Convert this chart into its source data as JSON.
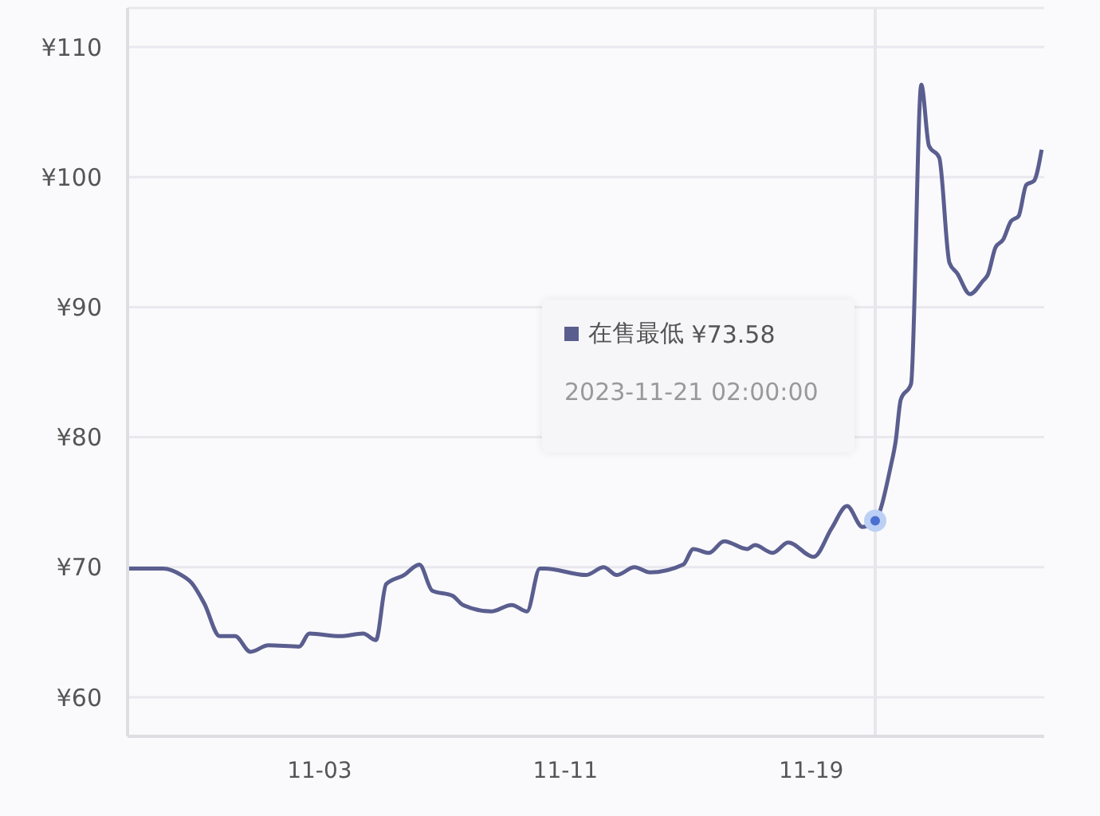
{
  "chart_data": {
    "type": "line",
    "x": [
      "2023-10-27T18:00",
      "2023-10-28T22:00",
      "2023-10-29T12:00",
      "2023-10-29T20:00",
      "2023-10-30T06:00",
      "2023-10-30T18:00",
      "2023-10-31T06:00",
      "2023-10-31T18:00",
      "2023-11-01T08:00",
      "2023-11-02T08:00",
      "2023-11-02T16:00",
      "2023-11-03T16:00",
      "2023-11-04T10:00",
      "2023-11-04T20:00",
      "2023-11-05T04:00",
      "2023-11-05T18:00",
      "2023-11-06T06:00",
      "2023-11-06T16:00",
      "2023-11-07T08:00",
      "2023-11-07T16:00",
      "2023-11-08T14:00",
      "2023-11-09T06:00",
      "2023-11-09T18:00",
      "2023-11-10T04:00",
      "2023-11-10T08:00",
      "2023-11-11T16:00",
      "2023-11-12T06:00",
      "2023-11-12T16:00",
      "2023-11-13T06:00",
      "2023-11-13T18:00",
      "2023-11-14T20:00",
      "2023-11-15T04:00",
      "2023-11-15T16:00",
      "2023-11-16T04:00",
      "2023-11-16T22:00",
      "2023-11-17T04:00",
      "2023-11-17T18:00",
      "2023-11-18T06:00",
      "2023-11-19T02:00",
      "2023-11-19T16:00",
      "2023-11-20T04:00",
      "2023-11-20T16:00",
      "2023-11-21T02:00",
      "2023-11-21T14:00",
      "2023-11-21T18:00",
      "2023-11-21T22:00",
      "2023-11-22T06:00",
      "2023-11-22T14:00",
      "2023-11-22T20:00",
      "2023-11-23T04:00",
      "2023-11-23T12:00",
      "2023-11-23T18:00",
      "2023-11-24T04:00",
      "2023-11-24T14:00",
      "2023-11-24T18:00",
      "2023-11-25T00:00",
      "2023-11-25T06:00",
      "2023-11-25T12:00",
      "2023-11-25T18:00",
      "2023-11-26T00:00",
      "2023-11-26T06:00",
      "2023-11-26T12:00"
    ],
    "series": [
      {
        "name": "在售最低",
        "color": "#5a5e8f",
        "values": [
          69.9,
          69.9,
          69.4,
          68.8,
          67.2,
          64.7,
          64.7,
          63.5,
          64.0,
          63.9,
          64.9,
          64.7,
          64.9,
          64.4,
          68.7,
          69.4,
          70.2,
          68.2,
          67.8,
          67.1,
          66.6,
          67.1,
          66.6,
          69.9,
          69.9,
          69.4,
          70.0,
          69.4,
          70.0,
          69.6,
          70.2,
          71.4,
          71.1,
          72.0,
          71.4,
          71.7,
          71.1,
          71.9,
          70.8,
          73.0,
          74.7,
          73.1,
          73.58,
          77.7,
          79.7,
          82.9,
          84.1,
          107.1,
          102.4,
          101.5,
          93.4,
          92.6,
          91.0,
          92.0,
          92.5,
          94.6,
          95.2,
          96.6,
          97.0,
          99.4,
          99.7,
          102.1
        ]
      }
    ],
    "xlim": [
      "2023-10-27T18:00",
      "2023-11-26T14:00"
    ],
    "xticks": [
      {
        "value": "2023-11-03",
        "label": "11-03"
      },
      {
        "value": "2023-11-11",
        "label": "11-11"
      },
      {
        "value": "2023-11-19",
        "label": "11-19"
      }
    ],
    "ylim": [
      57,
      113
    ],
    "yticks": [
      {
        "value": 60,
        "label": "¥60"
      },
      {
        "value": 70,
        "label": "¥70"
      },
      {
        "value": 80,
        "label": "¥80"
      },
      {
        "value": 90,
        "label": "¥90"
      },
      {
        "value": 100,
        "label": "¥100"
      },
      {
        "value": 110,
        "label": "¥110"
      }
    ],
    "grid": "y",
    "marker": "none",
    "line_style": "solid",
    "ref_lines": [
      {
        "axis": "x",
        "value": "2023-11-21T02:00",
        "color": "#e6e6ec"
      }
    ],
    "annotations": [
      "¥73.58",
      "2023-11-21 02:00:00"
    ]
  }
}
